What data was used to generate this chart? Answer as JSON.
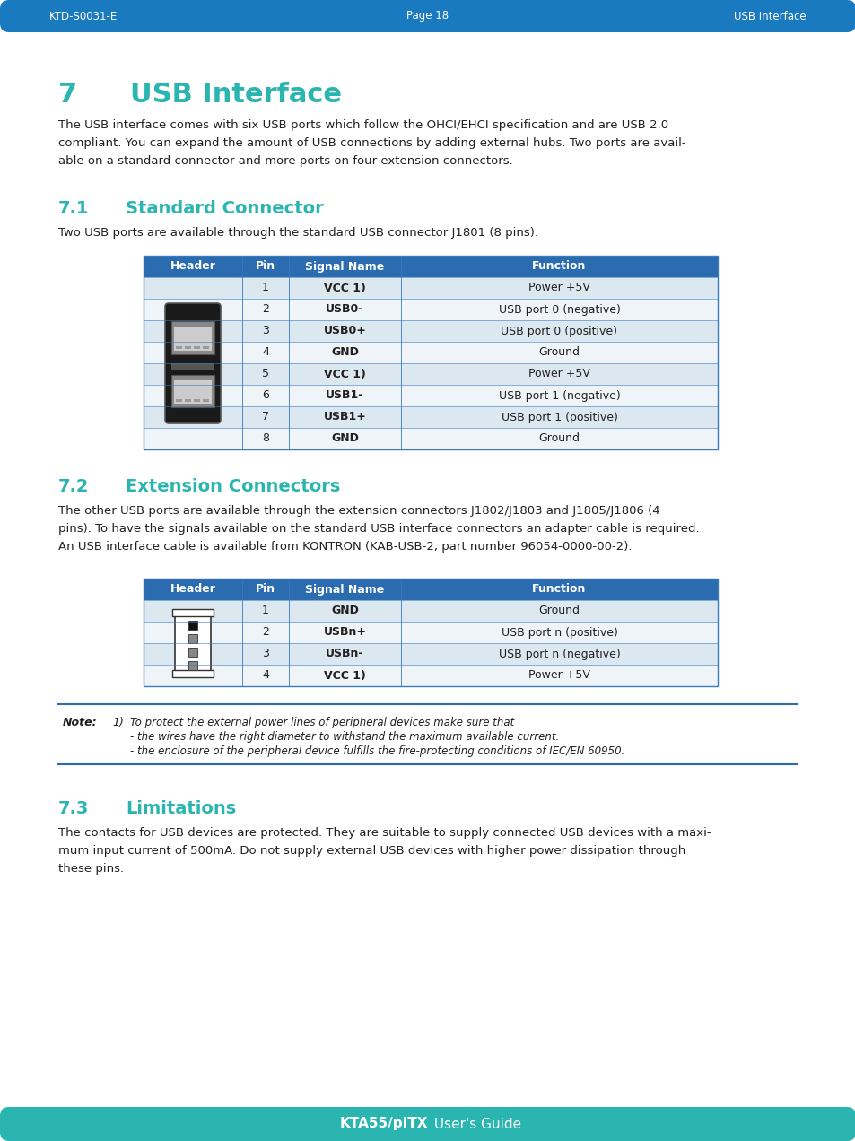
{
  "header_bg_color": "#1a7abf",
  "footer_bg_color": "#2ab5b0",
  "header_text_color": "#ffffff",
  "footer_text_color": "#ffffff",
  "header_left": "KTD-S0031-E",
  "header_center": "Page 18",
  "header_right": "USB Interface",
  "footer_center": "KTA55/pITX User's Guide",
  "body_bg": "#ffffff",
  "teal_color": "#2ab5b0",
  "dark_text": "#231f20",
  "section7_num": "7",
  "section7_title": "USB Interface",
  "section7_body_lines": [
    "The USB interface comes with six USB ports which follow the OHCI/EHCI specification and are USB 2.0",
    "compliant. You can expand the amount of USB connections by adding external hubs. Two ports are avail-",
    "able on a standard connector and more ports on four extension connectors."
  ],
  "section71_num": "7.1",
  "section71_title": "Standard Connector",
  "section71_body": "Two USB ports are available through the standard USB connector J1801 (8 pins).",
  "table1_header": [
    "Header",
    "Pin",
    "Signal Name",
    "Function"
  ],
  "table1_rows": [
    [
      "",
      "1",
      "VCC 1)",
      "Power +5V"
    ],
    [
      "",
      "2",
      "USB0-",
      "USB port 0 (negative)"
    ],
    [
      "",
      "3",
      "USB0+",
      "USB port 0 (positive)"
    ],
    [
      "",
      "4",
      "GND",
      "Ground"
    ],
    [
      "",
      "5",
      "VCC 1)",
      "Power +5V"
    ],
    [
      "",
      "6",
      "USB1-",
      "USB port 1 (negative)"
    ],
    [
      "",
      "7",
      "USB1+",
      "USB port 1 (positive)"
    ],
    [
      "",
      "8",
      "GND",
      "Ground"
    ]
  ],
  "section72_num": "7.2",
  "section72_title": "Extension Connectors",
  "section72_body_lines": [
    "The other USB ports are available through the extension connectors J1802/J1803 and J1805/J1806 (4",
    "pins). To have the signals available on the standard USB interface connectors an adapter cable is required.",
    "An USB interface cable is available from KONTRON (KAB-USB-2, part number 96054-0000-00-2)."
  ],
  "table2_header": [
    "Header",
    "Pin",
    "Signal Name",
    "Function"
  ],
  "table2_rows": [
    [
      "",
      "1",
      "GND",
      "Ground"
    ],
    [
      "",
      "2",
      "USBn+",
      "USB port n (positive)"
    ],
    [
      "",
      "3",
      "USBn-",
      "USB port n (negative)"
    ],
    [
      "",
      "4",
      "VCC 1)",
      "Power +5V"
    ]
  ],
  "note_bold": "Note:",
  "note_num": "1)",
  "note_lines": [
    "To protect the external power lines of peripheral devices make sure that",
    "- the wires have the right diameter to withstand the maximum available current.",
    "- the enclosure of the peripheral device fulfills the fire-protecting conditions of IEC/EN 60950."
  ],
  "section73_num": "7.3",
  "section73_title": "Limitations",
  "section73_body_lines": [
    "The contacts for USB devices are protected. They are suitable to supply connected USB devices with a maxi-",
    "mum input current of 500mA. Do not supply external USB devices with higher power dissipation through",
    "these pins."
  ],
  "table_header_bg": "#2b6cb0",
  "table_row_alt": "#dce8f0",
  "table_row_normal": "#eef4f8",
  "table_border": "#3a7abf",
  "note_border": "#2b6cb0"
}
